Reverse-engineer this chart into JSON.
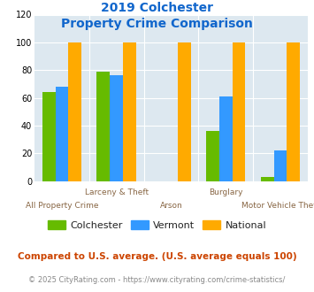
{
  "title_line1": "2019 Colchester",
  "title_line2": "Property Crime Comparison",
  "categories": [
    "All Property Crime",
    "Larceny & Theft",
    "Arson",
    "Burglary",
    "Motor Vehicle Theft"
  ],
  "cat_labels_line1": [
    "",
    "Larceny & Theft",
    "",
    "Burglary",
    ""
  ],
  "cat_labels_line2": [
    "All Property Crime",
    "",
    "Arson",
    "",
    "Motor Vehicle Theft"
  ],
  "colchester": [
    64,
    79,
    0,
    36,
    3
  ],
  "vermont": [
    68,
    76,
    0,
    61,
    22
  ],
  "national": [
    100,
    100,
    100,
    100,
    100
  ],
  "colchester_color": "#66bb00",
  "vermont_color": "#3399ff",
  "national_color": "#ffaa00",
  "plot_bg": "#dde8f0",
  "title_color": "#1166cc",
  "xlabel_color": "#886644",
  "legend_labels": [
    "Colchester",
    "Vermont",
    "National"
  ],
  "ylabel_max": 120,
  "yticks": [
    0,
    20,
    40,
    60,
    80,
    100,
    120
  ],
  "footnote1": "Compared to U.S. average. (U.S. average equals 100)",
  "footnote2": "© 2025 CityRating.com - https://www.cityrating.com/crime-statistics/",
  "footnote1_color": "#cc4400",
  "footnote2_color": "#888888"
}
